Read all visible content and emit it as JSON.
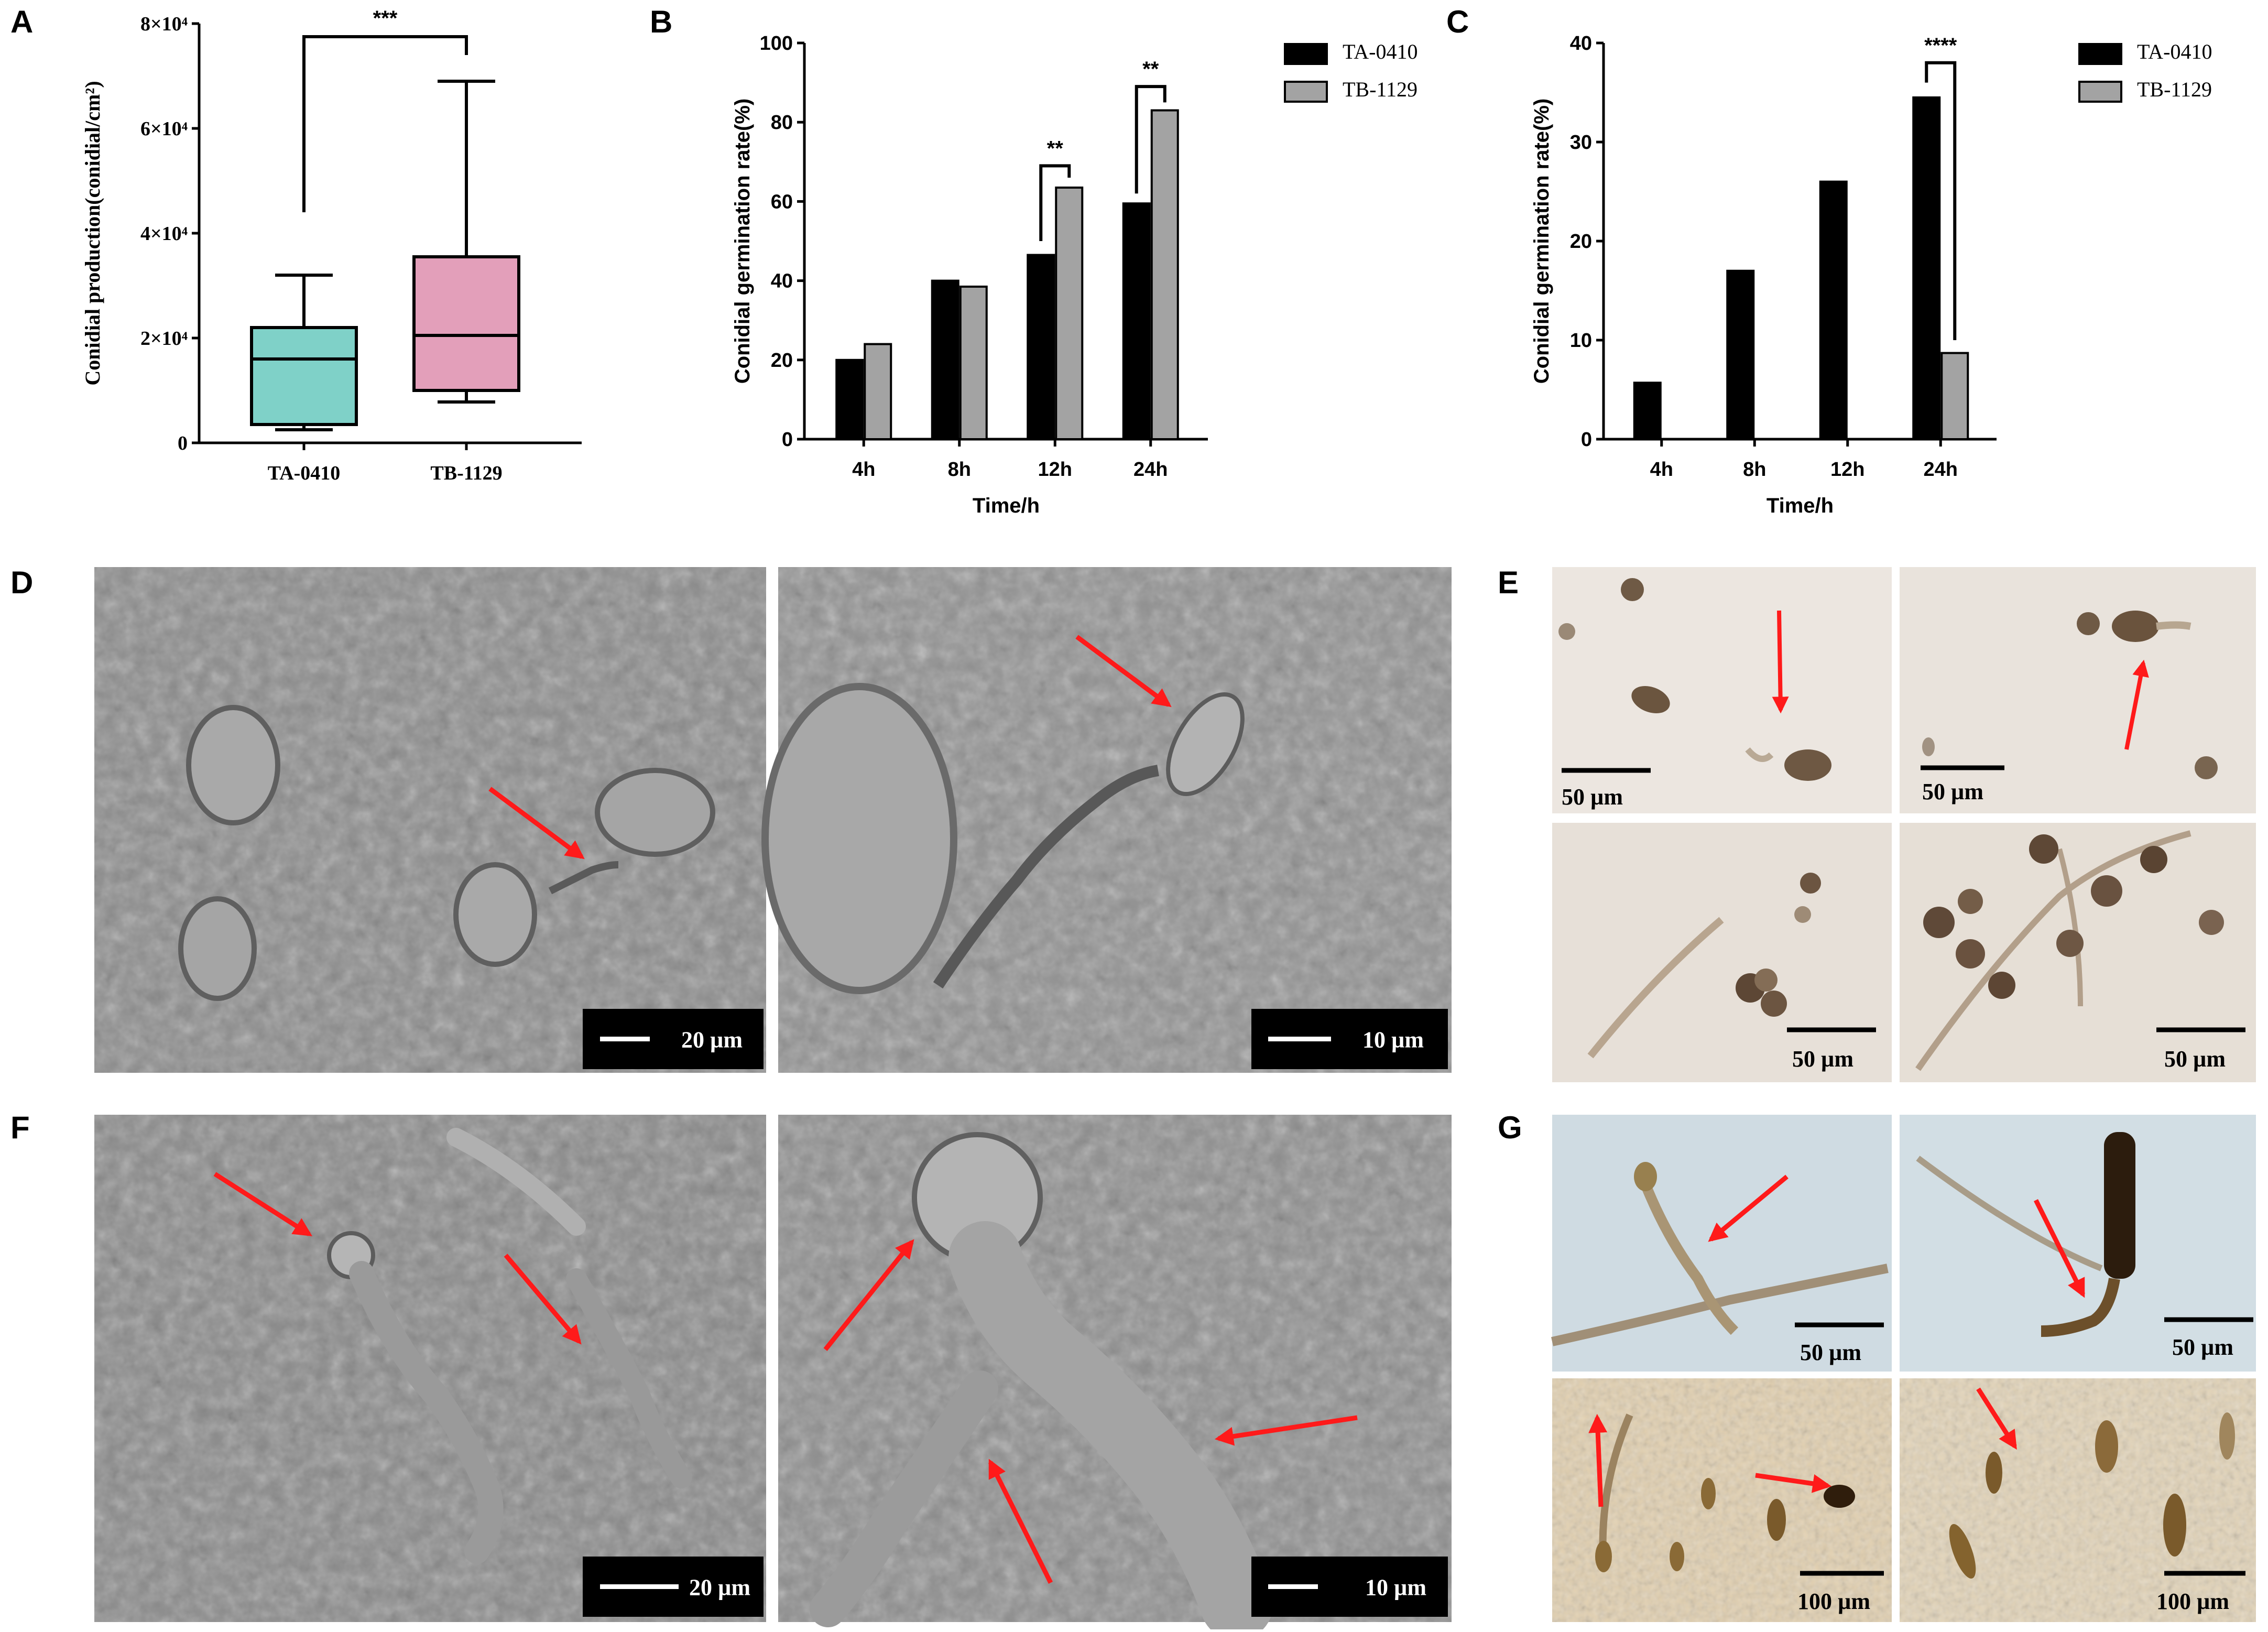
{
  "panel_labels": {
    "A": "A",
    "B": "B",
    "C": "C",
    "D": "D",
    "E": "E",
    "F": "F",
    "G": "G"
  },
  "chart_data": [
    {
      "panel": "A",
      "type": "box",
      "ylabel": "Conidial production(conidial/cm²)",
      "ylim": [
        0,
        80000
      ],
      "ytick_labels": [
        "0",
        "2×10⁴",
        "4×10⁴",
        "6×10⁴",
        "8×10⁴"
      ],
      "ytick_values": [
        0,
        20000,
        40000,
        60000,
        80000
      ],
      "categories": [
        "TA-0410",
        "TB-1129"
      ],
      "boxes": [
        {
          "name": "TA-0410",
          "min": 2500,
          "q1": 3500,
          "median": 16000,
          "q3": 22000,
          "max": 32000,
          "color": "#7fd1c8"
        },
        {
          "name": "TB-1129",
          "min": 7800,
          "q1": 10000,
          "median": 20500,
          "q3": 35500,
          "max": 69000,
          "color": "#e39fba"
        }
      ],
      "significance": "***"
    },
    {
      "panel": "B",
      "type": "bar",
      "xlabel": "Time/h",
      "ylabel": "Conidial germination rate(%)",
      "ylim": [
        0,
        100
      ],
      "yticks": [
        0,
        20,
        40,
        60,
        80,
        100
      ],
      "categories": [
        "4h",
        "8h",
        "12h",
        "24h"
      ],
      "series": [
        {
          "name": "TA-0410",
          "color": "#000000",
          "values": [
            20,
            40,
            46.5,
            59.5
          ]
        },
        {
          "name": "TB-1129",
          "color": "#a3a3a3",
          "values": [
            24,
            38.5,
            63.5,
            83
          ]
        }
      ],
      "significance": [
        {
          "category": "12h",
          "label": "**"
        },
        {
          "category": "24h",
          "label": "**"
        }
      ],
      "legend_position": "top-right"
    },
    {
      "panel": "C",
      "type": "bar",
      "xlabel": "Time/h",
      "ylabel": "Conidial germination rate(%)",
      "ylim": [
        0,
        40
      ],
      "yticks": [
        0,
        10,
        20,
        30,
        40
      ],
      "categories": [
        "4h",
        "8h",
        "12h",
        "24h"
      ],
      "series": [
        {
          "name": "TA-0410",
          "color": "#000000",
          "values": [
            5.7,
            17,
            26,
            34.5
          ]
        },
        {
          "name": "TB-1129",
          "color": "#a3a3a3",
          "values": [
            0,
            0,
            0,
            8.7
          ]
        }
      ],
      "significance": [
        {
          "category": "24h",
          "label": "****"
        }
      ],
      "legend_position": "top-right"
    }
  ],
  "micrographs": {
    "D": {
      "scales": [
        "20 µm",
        "10 µm"
      ]
    },
    "E": {
      "scales": [
        "50 µm",
        "50 µm",
        "50 µm",
        "50 µm"
      ]
    },
    "F": {
      "scales": [
        "20 µm",
        "10 µm"
      ]
    },
    "G": {
      "scales": [
        "50 µm",
        "50 µm",
        "100 µm",
        "100 µm"
      ]
    }
  }
}
